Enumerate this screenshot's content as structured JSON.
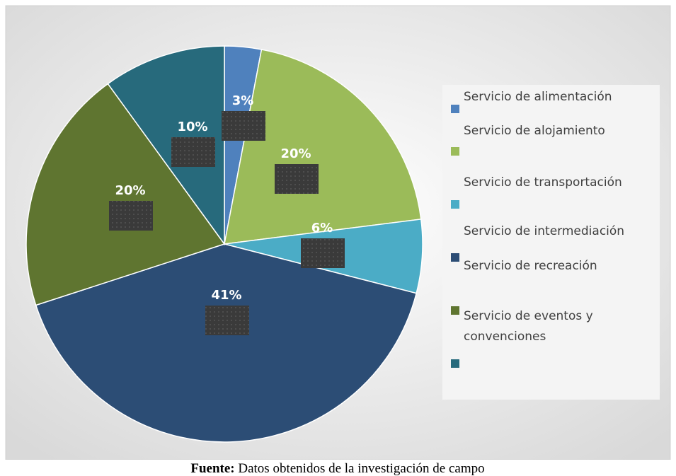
{
  "chart_data": {
    "type": "pie",
    "categories": [
      "Servicio de alimentación",
      "Servicio de alojamiento",
      "Servicio de transportación",
      "Servicio de intermediación",
      "Servicio de recreación",
      "Servicio de eventos y convenciones"
    ],
    "values": [
      3,
      20,
      6,
      41,
      20,
      10
    ],
    "value_labels": [
      "3%",
      "20%",
      "6%",
      "41%",
      "20%",
      "10%"
    ],
    "colors": [
      "#4f81bd",
      "#9bbb59",
      "#4bacc6",
      "#2c4d75",
      "#5f7530",
      "#276a7c"
    ],
    "legend": "right",
    "source_label": "Fuente:",
    "source": "Datos obtenidos de la investigación de campo"
  }
}
